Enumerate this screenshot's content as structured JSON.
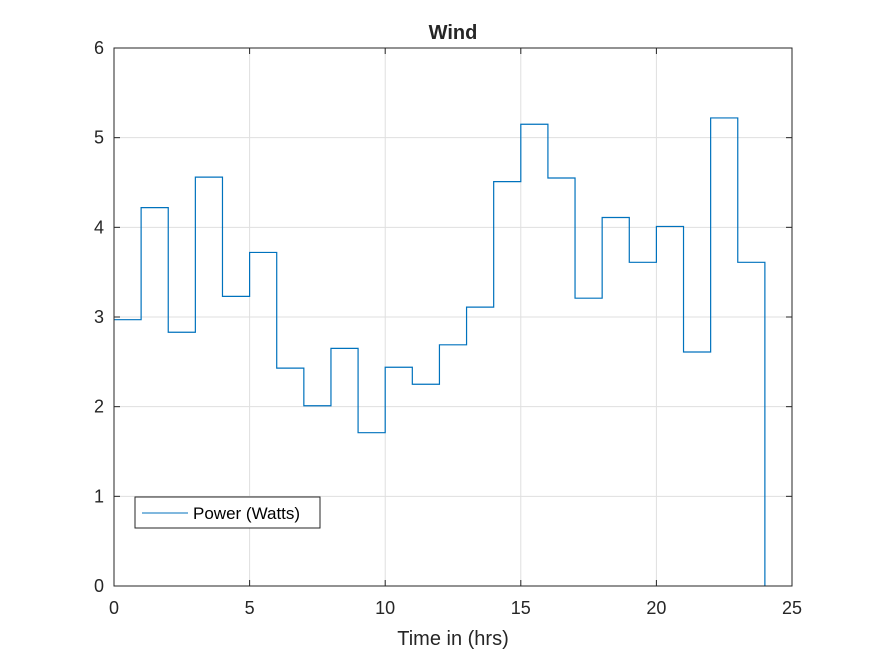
{
  "chart_data": {
    "type": "line",
    "step": "post",
    "title": "Wind",
    "xlabel": "Time in (hrs)",
    "ylabel": "",
    "xlim": [
      0,
      25
    ],
    "ylim": [
      0,
      6
    ],
    "xticks": [
      0,
      5,
      10,
      15,
      20,
      25
    ],
    "yticks": [
      0,
      1,
      2,
      3,
      4,
      5,
      6
    ],
    "xtick_labels": [
      "0",
      "5",
      "10",
      "15",
      "20",
      "25"
    ],
    "ytick_labels": [
      "0",
      "1",
      "2",
      "3",
      "4",
      "5",
      "6"
    ],
    "grid": true,
    "legend_position": "bottom-left",
    "series": [
      {
        "name": "Power (Watts)",
        "color": "#0072BD",
        "x": [
          0,
          1,
          2,
          3,
          4,
          5,
          6,
          7,
          8,
          9,
          10,
          11,
          12,
          13,
          14,
          15,
          16,
          17,
          18,
          19,
          20,
          21,
          22,
          23,
          24
        ],
        "y": [
          2.97,
          4.22,
          2.83,
          4.56,
          3.23,
          3.72,
          2.43,
          2.01,
          2.65,
          1.71,
          2.44,
          2.25,
          2.69,
          3.11,
          4.51,
          5.15,
          4.55,
          3.21,
          4.11,
          3.61,
          4.01,
          2.61,
          5.22,
          3.61,
          0
        ]
      }
    ]
  }
}
